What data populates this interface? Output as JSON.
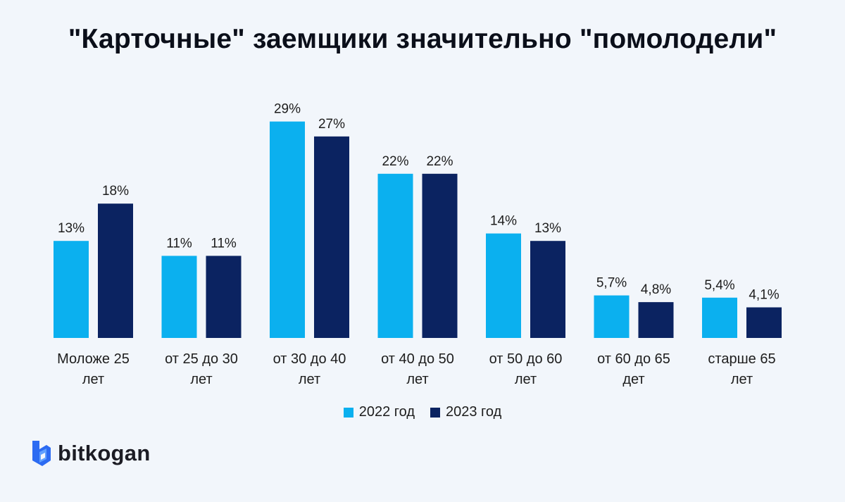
{
  "title": "\"Карточные\" заемщики значительно \"помолодели\"",
  "colors": {
    "series_2022": "#0bb0ef",
    "series_2023": "#0b2361",
    "logo_accent": "#2c6bf2"
  },
  "legend": {
    "item_2022": "2022 год",
    "item_2023": "2023 год"
  },
  "logo": {
    "icon": "bitkogan-b-icon",
    "text": "bitkogan"
  },
  "chart_data": {
    "type": "bar",
    "title": "\"Карточные\" заемщики значительно \"помолодели\"",
    "categories": [
      [
        "Моложе 25",
        "лет"
      ],
      [
        "от 25 до 30",
        "лет"
      ],
      [
        "от 30 до 40",
        "лет"
      ],
      [
        "от 40 до 50",
        "лет"
      ],
      [
        "от 50 до 60",
        "лет"
      ],
      [
        "от 60 до 65",
        "дет"
      ],
      [
        "старше 65",
        "лет"
      ]
    ],
    "series": [
      {
        "name": "2022 год",
        "values": [
          13,
          11,
          29,
          22,
          14,
          5.7,
          5.4
        ],
        "labels": [
          "13%",
          "11%",
          "29%",
          "22%",
          "14%",
          "5,7%",
          "5,4%"
        ]
      },
      {
        "name": "2023 год",
        "values": [
          18,
          11,
          27,
          22,
          13,
          4.8,
          4.1
        ],
        "labels": [
          "18%",
          "11%",
          "27%",
          "22%",
          "13%",
          "4,8%",
          "4,1%"
        ]
      }
    ],
    "ylim": [
      0,
      30
    ],
    "grid": false,
    "legend_position": "bottom"
  }
}
